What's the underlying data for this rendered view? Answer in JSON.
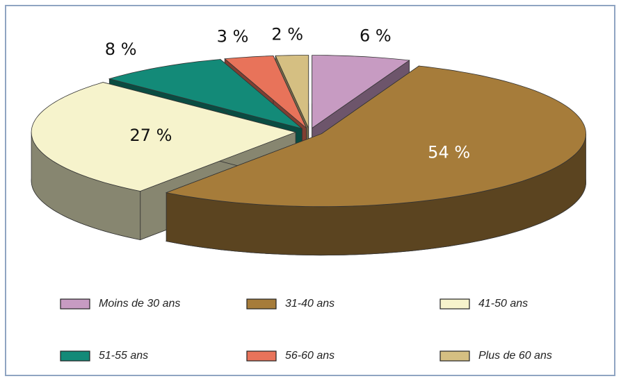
{
  "chart_data": {
    "type": "pie3d",
    "categories": [
      "Moins de 30 ans",
      "31-40 ans",
      "41-50 ans",
      "51-55 ans",
      "56-60 ans",
      "Plus de 60 ans"
    ],
    "values": [
      6,
      54,
      27,
      8,
      3,
      2
    ],
    "value_labels": [
      "6 %",
      "54 %",
      "27 %",
      "8 %",
      "3 %",
      "2 %"
    ],
    "colors": [
      "#c79bc2",
      "#a67c3a",
      "#f6f3cc",
      "#138a78",
      "#e8735a",
      "#d5bf82"
    ],
    "legend": "bottom"
  }
}
